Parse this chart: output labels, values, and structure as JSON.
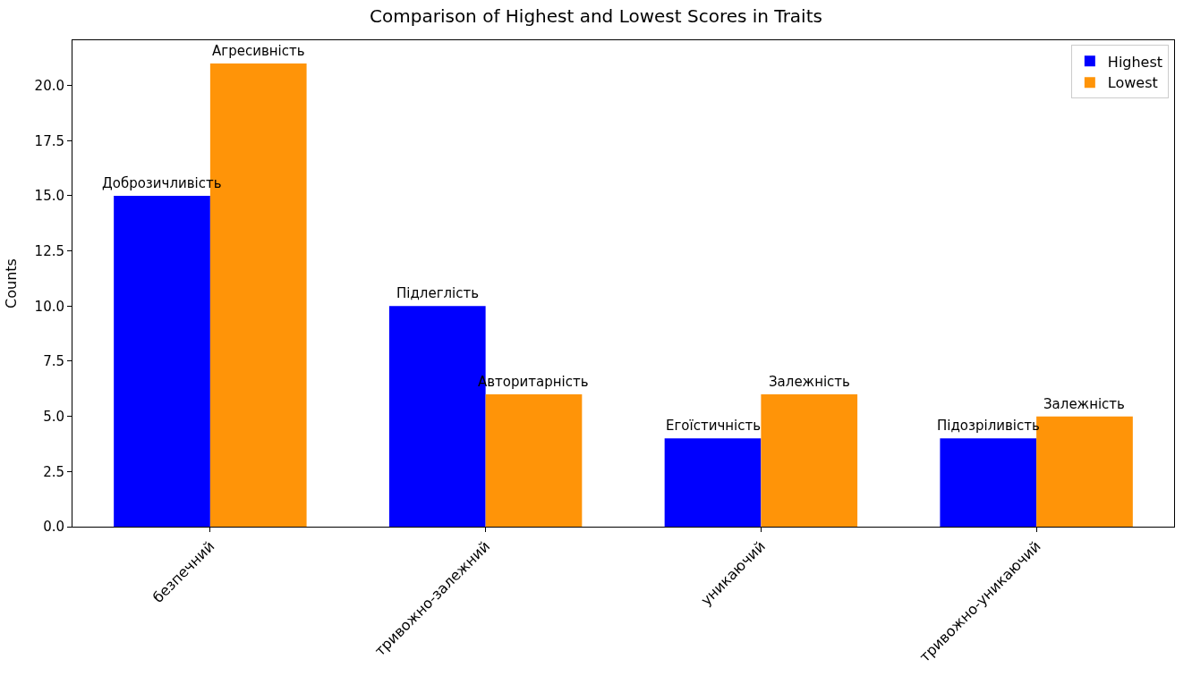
{
  "chart_data": {
    "type": "bar",
    "title": "Comparison of Highest and Lowest Scores in Traits",
    "ylabel": "Counts",
    "categories": [
      "безпечний",
      "тривожно-залежний",
      "уникаючий",
      "тривожно-уникаючий"
    ],
    "series": [
      {
        "name": "Highest",
        "color": "#0000ff",
        "values": [
          15,
          10,
          4,
          4
        ],
        "value_labels": [
          "Доброзичливість",
          "Підлеглість",
          "Егоїстичність",
          "Підозріливість"
        ]
      },
      {
        "name": "Lowest",
        "color": "#ff9408",
        "values": [
          21,
          6,
          6,
          5
        ],
        "value_labels": [
          "Агресивність",
          "Авторитарність",
          "Залежність",
          "Залежність"
        ]
      }
    ],
    "ylim": [
      0,
      22.05
    ],
    "yticks": [
      {
        "value": 0,
        "label": "0.0"
      },
      {
        "value": 2.5,
        "label": "2.5"
      },
      {
        "value": 5,
        "label": "5.0"
      },
      {
        "value": 7.5,
        "label": "7.5"
      },
      {
        "value": 10,
        "label": "10.0"
      },
      {
        "value": 12.5,
        "label": "12.5"
      },
      {
        "value": 15,
        "label": "15.0"
      },
      {
        "value": 17.5,
        "label": "17.5"
      },
      {
        "value": 20,
        "label": "20.0"
      }
    ],
    "grid": false,
    "legend": "top right"
  }
}
